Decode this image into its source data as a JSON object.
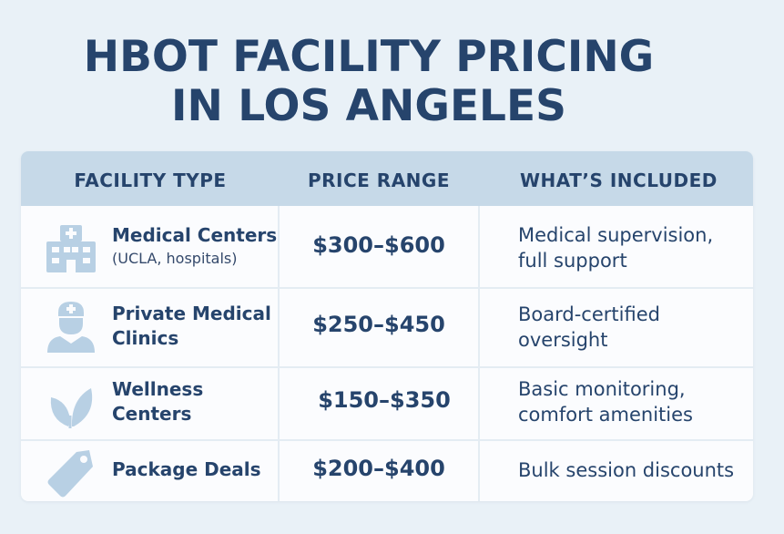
{
  "title": {
    "line1": "HBOT FACILITY PRICING",
    "line2": "IN LOS ANGELES"
  },
  "table": {
    "headers": {
      "facility_type": "FACILITY TYPE",
      "price_range": "PRICE RANGE",
      "whats_included": "WHAT’S INCLUDED"
    },
    "rows": [
      {
        "icon": "hospital-icon",
        "name_line1": "Medical Centers",
        "name_sub": "(UCLA, hospitals)",
        "price": "$300–$600",
        "included_line1": "Medical supervision,",
        "included_line2": "full support"
      },
      {
        "icon": "doctor-icon",
        "name_line1": "Private Medical",
        "name_line2": "Clinics",
        "price": "$250–$450",
        "included_line1": "Board-certified",
        "included_line2": "oversight"
      },
      {
        "icon": "leaf-icon",
        "name_line1": "Wellness",
        "name_line2": "Centers",
        "price": "$150–$350",
        "included_line1": "Basic monitoring,",
        "included_line2": "comfort amenities"
      },
      {
        "icon": "price-tag-icon",
        "name_line1": "Package Deals",
        "price": "$200–$400",
        "included_line1": "Bulk session discounts"
      }
    ]
  },
  "colors": {
    "background": "#e9f1f7",
    "header_background": "#c6d9e8",
    "title_text": "#26446c",
    "icon_fill": "#b8d0e4"
  }
}
